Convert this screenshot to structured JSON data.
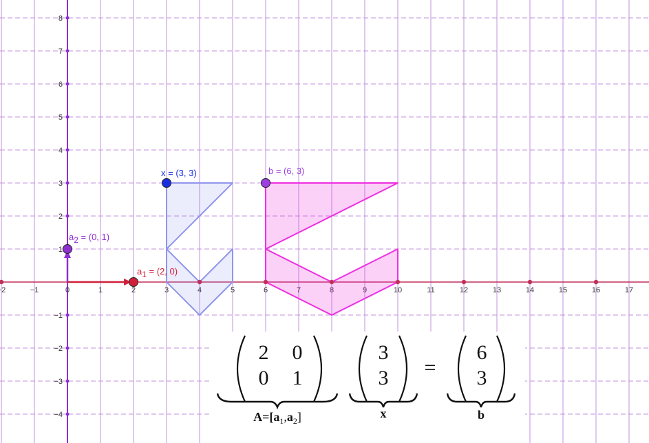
{
  "graph": {
    "x_range": [
      -2,
      17.5
    ],
    "y_range": [
      -4.5,
      8.5
    ],
    "x_ticks": [
      "-2",
      "-1",
      "0",
      "1",
      "2",
      "3",
      "4",
      "5",
      "6",
      "7",
      "8",
      "9",
      "10",
      "11",
      "12",
      "13",
      "14",
      "15",
      "16",
      "17"
    ],
    "y_ticks": [
      "-4",
      "-3",
      "-2",
      "-1",
      "1",
      "2",
      "3",
      "4",
      "5",
      "6",
      "7",
      "8"
    ],
    "origin_label": "0",
    "even_axis_points": [
      -2,
      2,
      4,
      6,
      8,
      10,
      12,
      14,
      16
    ],
    "axis_color": "#8e2fd0",
    "grid_color": "#c090dc",
    "x_axis_color": "#c0305a"
  },
  "vectors": {
    "a1": {
      "name": "a",
      "sub": "1",
      "text": " = (2, 0)",
      "point": [
        2,
        0
      ],
      "color": "#d11f3a"
    },
    "a2": {
      "name": "a",
      "sub": "2",
      "text": " = (0, 1)",
      "point": [
        0,
        1
      ],
      "color": "#8e2fd0"
    },
    "x": {
      "label": "x = (3, 3)",
      "point": [
        3,
        3
      ],
      "color": "#1a2ee0"
    },
    "b": {
      "label": "b = (6, 3)",
      "point": [
        6,
        3
      ],
      "color": "#9b3fe0"
    }
  },
  "shapes": {
    "original_polygon": [
      [
        3,
        3
      ],
      [
        5,
        3
      ],
      [
        3,
        1
      ],
      [
        4,
        0
      ],
      [
        5,
        1
      ],
      [
        5,
        0
      ],
      [
        4,
        -1
      ],
      [
        3,
        0
      ]
    ],
    "original_color": "#8f96ec",
    "transformed_polygon": [
      [
        6,
        3
      ],
      [
        10,
        3
      ],
      [
        6,
        1
      ],
      [
        8,
        0
      ],
      [
        10,
        1
      ],
      [
        10,
        0
      ],
      [
        8,
        -1
      ],
      [
        6,
        0
      ]
    ],
    "transformed_color": "#ee2ee0"
  },
  "equation": {
    "matrix_A": [
      [
        "2",
        "0"
      ],
      [
        "0",
        "1"
      ]
    ],
    "vector_x": [
      "3",
      "3"
    ],
    "vector_b": [
      "6",
      "3"
    ],
    "equals": "=",
    "label_A_prefix": "A=[",
    "label_A_a1": "a",
    "label_A_sub1": "1",
    "label_A_sep": ",",
    "label_A_a2": "a",
    "label_A_sub2": "2",
    "label_A_suffix": "]",
    "label_x": "x",
    "label_b": "b"
  }
}
